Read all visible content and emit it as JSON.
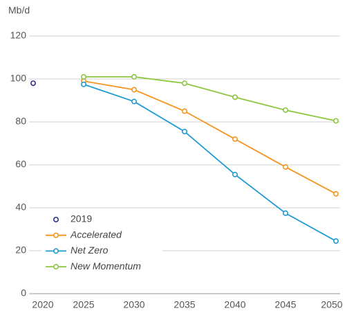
{
  "chart_data": {
    "type": "line",
    "y_label": "Mb/d",
    "categories": [
      "2020",
      "2025",
      "2030",
      "2035",
      "2040",
      "2045",
      "2050"
    ],
    "series": [
      {
        "name": "2019",
        "color": "#2e3192",
        "values": [
          98,
          null,
          null,
          null,
          null,
          null,
          null
        ],
        "marker_only": true
      },
      {
        "name": "Accelerated",
        "color": "#f7941d",
        "values": [
          null,
          99,
          95,
          85,
          72,
          59,
          46.5
        ]
      },
      {
        "name": "Net Zero",
        "color": "#1f9bd1",
        "values": [
          null,
          97.5,
          89.5,
          75.5,
          55.5,
          37.5,
          24.5
        ]
      },
      {
        "name": "New Momentum",
        "color": "#8dc63f",
        "values": [
          null,
          101,
          101,
          98,
          91.5,
          85.5,
          80.5
        ]
      }
    ],
    "ylim": [
      0,
      120
    ],
    "yticks": [
      0,
      20,
      40,
      60,
      80,
      100,
      120
    ],
    "grid": true,
    "legend": "lower-left"
  }
}
